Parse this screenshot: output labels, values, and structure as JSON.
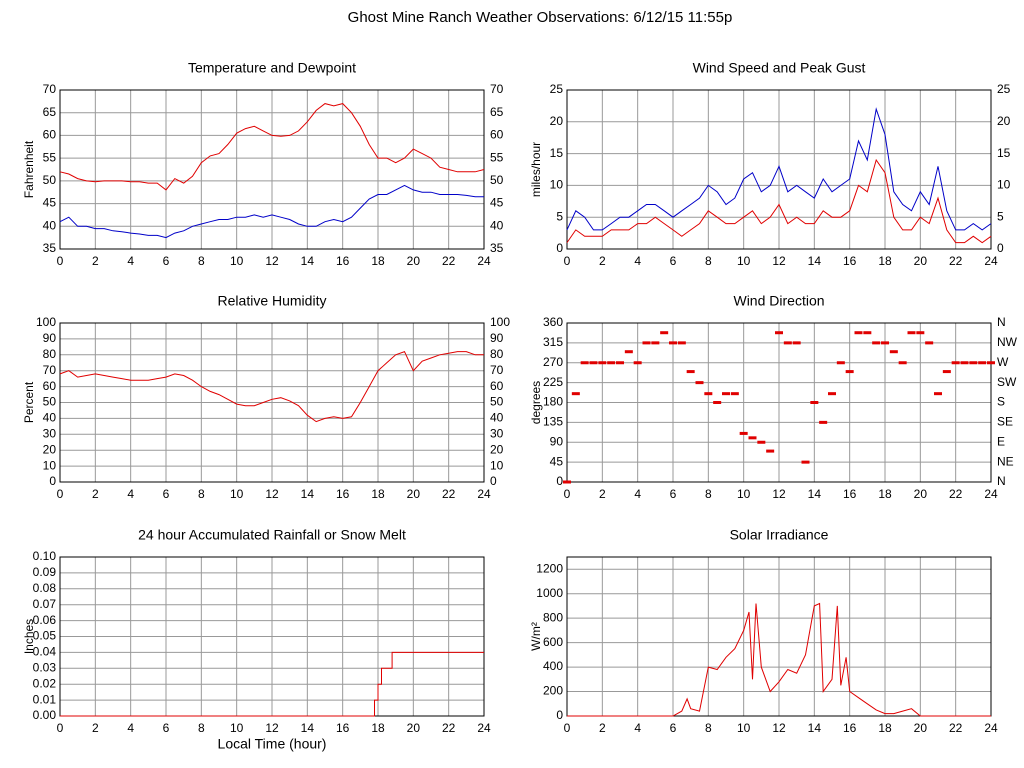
{
  "page_title": "Ghost Mine Ranch Weather Observations: 6/12/15 11:55p",
  "chart_data": [
    {
      "type": "line",
      "title": "Temperature and Dewpoint",
      "ylabel": "Fahrenheit",
      "x": [
        0,
        0.5,
        1,
        1.5,
        2,
        2.5,
        3,
        3.5,
        4,
        4.5,
        5,
        5.5,
        6,
        6.5,
        7,
        7.5,
        8,
        8.5,
        9,
        9.5,
        10,
        10.5,
        11,
        11.5,
        12,
        12.5,
        13,
        13.5,
        14,
        14.5,
        15,
        15.5,
        16,
        16.5,
        17,
        17.5,
        18,
        18.5,
        19,
        19.5,
        20,
        20.5,
        21,
        21.5,
        22,
        22.5,
        23,
        23.5,
        24
      ],
      "series": [
        {
          "color": "#e00000",
          "values": [
            52,
            51.5,
            50.5,
            50,
            49.8,
            50,
            50,
            50,
            49.8,
            49.8,
            49.5,
            49.5,
            48,
            50.5,
            49.5,
            51,
            54,
            55.5,
            56,
            58,
            60.5,
            61.5,
            62,
            61,
            60,
            59.8,
            60,
            61,
            63,
            65.5,
            67,
            66.5,
            67,
            65,
            62,
            58,
            55,
            55,
            54,
            55,
            57,
            56,
            55,
            53,
            52.5,
            52,
            52,
            52,
            52.5
          ]
        },
        {
          "color": "#0000c8",
          "values": [
            41,
            42,
            40,
            40,
            39.5,
            39.5,
            39,
            38.8,
            38.5,
            38.3,
            38,
            38,
            37.5,
            38.5,
            39,
            40,
            40.5,
            41,
            41.5,
            41.5,
            42,
            42,
            42.5,
            42,
            42.5,
            42,
            41.5,
            40.5,
            40,
            40,
            41,
            41.5,
            41,
            42,
            44,
            46,
            47,
            47,
            48,
            49,
            48,
            47.5,
            47.5,
            47,
            47,
            47,
            46.8,
            46.5,
            46.5
          ]
        }
      ],
      "xlim": [
        0,
        24
      ],
      "xticks": [
        0,
        2,
        4,
        6,
        8,
        10,
        12,
        14,
        16,
        18,
        20,
        22,
        24
      ],
      "ylim": [
        35,
        70
      ],
      "yticks": [
        35,
        40,
        45,
        50,
        55,
        60,
        65,
        70
      ],
      "mirror_ticks": true,
      "grid": true
    },
    {
      "type": "line",
      "title": "Wind Speed and Peak Gust",
      "ylabel": "miles/hour",
      "x": [
        0,
        0.5,
        1,
        1.5,
        2,
        2.5,
        3,
        3.5,
        4,
        4.5,
        5,
        5.5,
        6,
        6.5,
        7,
        7.5,
        8,
        8.5,
        9,
        9.5,
        10,
        10.5,
        11,
        11.5,
        12,
        12.5,
        13,
        13.5,
        14,
        14.5,
        15,
        15.5,
        16,
        16.5,
        17,
        17.5,
        18,
        18.5,
        19,
        19.5,
        20,
        20.5,
        21,
        21.5,
        22,
        22.5,
        23,
        23.5,
        24
      ],
      "series": [
        {
          "color": "#0000c8",
          "values": [
            3,
            6,
            5,
            3,
            3,
            4,
            5,
            5,
            6,
            7,
            7,
            6,
            5,
            6,
            7,
            8,
            10,
            9,
            7,
            8,
            11,
            12,
            9,
            10,
            13,
            9,
            10,
            9,
            8,
            11,
            9,
            10,
            11,
            17,
            14,
            22,
            18,
            9,
            7,
            6,
            9,
            7,
            13,
            6,
            3,
            3,
            4,
            3,
            4
          ]
        },
        {
          "color": "#e00000",
          "values": [
            1,
            3,
            2,
            2,
            2,
            3,
            3,
            3,
            4,
            4,
            5,
            4,
            3,
            2,
            3,
            4,
            6,
            5,
            4,
            4,
            5,
            6,
            4,
            5,
            7,
            4,
            5,
            4,
            4,
            6,
            5,
            5,
            6,
            10,
            9,
            14,
            12,
            5,
            3,
            3,
            5,
            4,
            8,
            3,
            1,
            1,
            2,
            1,
            2
          ]
        }
      ],
      "xlim": [
        0,
        24
      ],
      "xticks": [
        0,
        2,
        4,
        6,
        8,
        10,
        12,
        14,
        16,
        18,
        20,
        22,
        24
      ],
      "ylim": [
        0,
        25
      ],
      "yticks": [
        0,
        5,
        10,
        15,
        20,
        25
      ],
      "mirror_ticks": true,
      "grid": true
    },
    {
      "type": "line",
      "title": "Relative Humidity",
      "ylabel": "Percent",
      "x": [
        0,
        0.5,
        1,
        1.5,
        2,
        2.5,
        3,
        3.5,
        4,
        4.5,
        5,
        5.5,
        6,
        6.5,
        7,
        7.5,
        8,
        8.5,
        9,
        9.5,
        10,
        10.5,
        11,
        11.5,
        12,
        12.5,
        13,
        13.5,
        14,
        14.5,
        15,
        15.5,
        16,
        16.5,
        17,
        17.5,
        18,
        18.5,
        19,
        19.5,
        20,
        20.5,
        21,
        21.5,
        22,
        22.5,
        23,
        23.5,
        24
      ],
      "series": [
        {
          "color": "#e00000",
          "values": [
            68,
            70,
            66,
            67,
            68,
            67,
            66,
            65,
            64,
            64,
            64,
            65,
            66,
            68,
            67,
            64,
            60,
            57,
            55,
            52,
            49,
            48,
            48,
            50,
            52,
            53,
            51,
            48,
            42,
            38,
            40,
            41,
            40,
            41,
            50,
            60,
            70,
            75,
            80,
            82,
            70,
            76,
            78,
            80,
            81,
            82,
            82,
            80,
            80
          ]
        }
      ],
      "xlim": [
        0,
        24
      ],
      "xticks": [
        0,
        2,
        4,
        6,
        8,
        10,
        12,
        14,
        16,
        18,
        20,
        22,
        24
      ],
      "ylim": [
        0,
        100
      ],
      "yticks": [
        0,
        10,
        20,
        30,
        40,
        50,
        60,
        70,
        80,
        90,
        100
      ],
      "mirror_ticks": true,
      "grid": true
    },
    {
      "type": "scatter",
      "title": "Wind Direction",
      "ylabel": "degrees",
      "x": [
        0,
        0.5,
        1,
        1.5,
        2,
        2.5,
        3,
        3.5,
        4,
        4.5,
        5,
        5.5,
        6,
        6.5,
        7,
        7.5,
        8,
        8.5,
        9,
        9.5,
        10,
        10.5,
        11,
        11.5,
        12,
        12.5,
        13,
        13.5,
        14,
        14.5,
        15,
        15.5,
        16,
        16.5,
        17,
        17.5,
        18,
        18.5,
        19,
        19.5,
        20,
        20.5,
        21,
        21.5,
        22,
        22.5,
        23,
        23.5,
        24
      ],
      "series": [
        {
          "color": "#e00000",
          "values": [
            0,
            200,
            270,
            270,
            270,
            270,
            270,
            295,
            270,
            315,
            315,
            338,
            315,
            315,
            250,
            225,
            200,
            180,
            200,
            200,
            110,
            100,
            90,
            70,
            338,
            315,
            315,
            45,
            180,
            135,
            200,
            270,
            250,
            338,
            338,
            315,
            315,
            295,
            270,
            338,
            338,
            315,
            200,
            250,
            270,
            270,
            270,
            270,
            270
          ]
        }
      ],
      "xlim": [
        0,
        24
      ],
      "xticks": [
        0,
        2,
        4,
        6,
        8,
        10,
        12,
        14,
        16,
        18,
        20,
        22,
        24
      ],
      "ylim": [
        0,
        360
      ],
      "yticks": [
        0,
        45,
        90,
        135,
        180,
        225,
        270,
        315,
        360
      ],
      "y2lim": [
        0,
        360
      ],
      "y2ticks": [
        {
          "value": 0,
          "label": "N"
        },
        {
          "value": 45,
          "label": "NE"
        },
        {
          "value": 90,
          "label": "E"
        },
        {
          "value": 135,
          "label": "SE"
        },
        {
          "value": 180,
          "label": "S"
        },
        {
          "value": 225,
          "label": "SW"
        },
        {
          "value": 270,
          "label": "W"
        },
        {
          "value": 315,
          "label": "NW"
        },
        {
          "value": 360,
          "label": "N"
        }
      ],
      "grid": true
    },
    {
      "type": "line",
      "title": "24 hour Accumulated Rainfall or Snow Melt",
      "ylabel": "Inches",
      "xlabel": "Local Time (hour)",
      "x": [
        0,
        17.8,
        17.8,
        18.0,
        18.0,
        18.2,
        18.2,
        18.8,
        18.8,
        24
      ],
      "series": [
        {
          "color": "#e00000",
          "values": [
            0,
            0,
            0.01,
            0.01,
            0.02,
            0.02,
            0.03,
            0.03,
            0.04,
            0.04
          ]
        }
      ],
      "xlim": [
        0,
        24
      ],
      "xticks": [
        0,
        2,
        4,
        6,
        8,
        10,
        12,
        14,
        16,
        18,
        20,
        22,
        24
      ],
      "ylim": [
        0,
        0.1
      ],
      "yticks": [
        {
          "value": 0,
          "label": "0.00"
        },
        0.01,
        0.02,
        0.03,
        0.04,
        0.05,
        0.06,
        0.07,
        0.08,
        0.09,
        {
          "value": 0.1,
          "label": "0.10"
        }
      ],
      "grid": true
    },
    {
      "type": "line",
      "title": "Solar Irradiance",
      "ylabel": "W/m²",
      "x": [
        0,
        6,
        6.5,
        6.8,
        7,
        7.5,
        8,
        8.5,
        9,
        9.5,
        10,
        10.3,
        10.5,
        10.7,
        11,
        11.5,
        12,
        12.5,
        13,
        13.5,
        14,
        14.3,
        14.5,
        15,
        15.3,
        15.5,
        15.8,
        16,
        16.5,
        17,
        17.5,
        18,
        18.5,
        19,
        19.5,
        20,
        24
      ],
      "series": [
        {
          "color": "#e00000",
          "values": [
            0,
            0,
            40,
            140,
            60,
            40,
            400,
            380,
            480,
            550,
            700,
            850,
            300,
            920,
            400,
            200,
            280,
            380,
            350,
            500,
            900,
            920,
            200,
            300,
            900,
            250,
            480,
            200,
            150,
            100,
            50,
            20,
            20,
            40,
            60,
            0,
            0
          ]
        }
      ],
      "xlim": [
        0,
        24
      ],
      "xticks": [
        0,
        2,
        4,
        6,
        8,
        10,
        12,
        14,
        16,
        18,
        20,
        22,
        24
      ],
      "ylim": [
        0,
        1300
      ],
      "yticks": [
        0,
        200,
        400,
        600,
        800,
        1000,
        1200
      ],
      "grid": true
    }
  ]
}
